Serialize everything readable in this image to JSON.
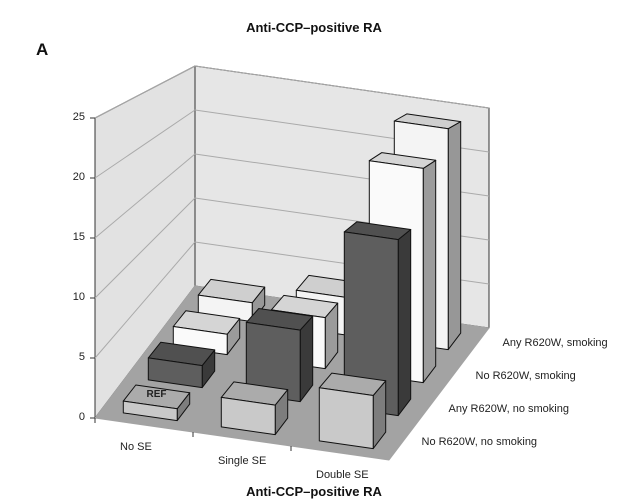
{
  "chart_data": {
    "type": "bar",
    "subtype": "3d-bar",
    "title": "Anti-CCP–positive RA",
    "panel_label": "A",
    "categories": [
      "No SE",
      "Single SE",
      "Double SE"
    ],
    "series": [
      {
        "name": "No R620W, no smoking",
        "values": [
          1,
          2.5,
          4.5
        ],
        "color": "#c9c9c9"
      },
      {
        "name": "Any R620W, no smoking",
        "values": [
          2,
          6.5,
          16
        ],
        "color": "#5e5e5e"
      },
      {
        "name": "No R620W,  smoking",
        "values": [
          2,
          5,
          21
        ],
        "color": "#fafafa"
      },
      {
        "name": "Any R620W,  smoking",
        "values": [
          2,
          4,
          23.5
        ],
        "color": "#f4f4f4"
      }
    ],
    "annotations": [
      {
        "category": "No SE",
        "series": "No R620W, no smoking",
        "text": "REF"
      }
    ],
    "yticks": [
      "0",
      "5",
      "10",
      "15",
      "20",
      "25"
    ],
    "ylim": [
      0,
      25
    ],
    "grid": true,
    "next_title_partial": "Anti-CCP–positive RA"
  }
}
